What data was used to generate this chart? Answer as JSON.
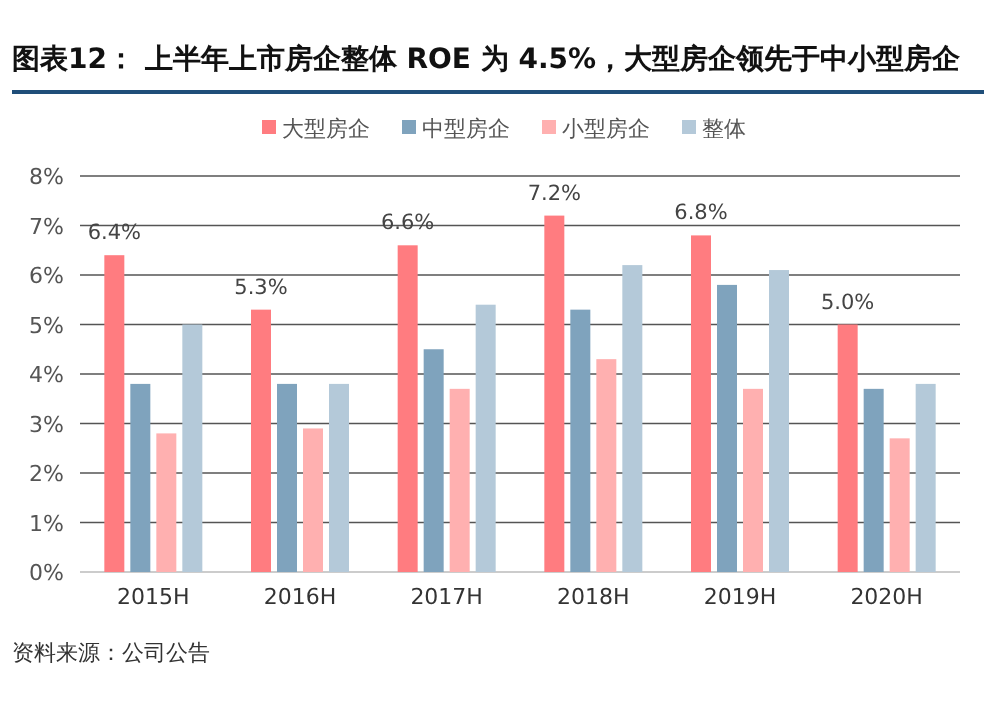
{
  "chart_data": {
    "type": "bar",
    "title": "图表12： 上半年上市房企整体 ROE 为 4.5%，大型房企领先于中小型房企",
    "categories": [
      "2015H",
      "2016H",
      "2017H",
      "2018H",
      "2019H",
      "2020H"
    ],
    "series": [
      {
        "name": "大型房企",
        "color": "#ff7c80",
        "values": [
          6.4,
          5.3,
          6.6,
          7.2,
          6.8,
          5.0
        ],
        "value_labels": [
          "6.4%",
          "5.3%",
          "6.6%",
          "7.2%",
          "6.8%",
          "5.0%"
        ]
      },
      {
        "name": "中型房企",
        "color": "#7fa3bd",
        "values": [
          3.8,
          3.8,
          4.5,
          5.3,
          5.8,
          3.7
        ]
      },
      {
        "name": "小型房企",
        "color": "#ffb0b0",
        "values": [
          2.8,
          2.9,
          3.7,
          4.3,
          3.7,
          2.7
        ]
      },
      {
        "name": "整体",
        "color": "#b4c9d9",
        "values": [
          5.0,
          3.8,
          5.4,
          6.2,
          6.1,
          3.8
        ]
      }
    ],
    "ylim": [
      0,
      8
    ],
    "yticks": [
      {
        "value": 0,
        "label": "0%"
      },
      {
        "value": 1,
        "label": "1%"
      },
      {
        "value": 2,
        "label": "2%"
      },
      {
        "value": 3,
        "label": "3%"
      },
      {
        "value": 4,
        "label": "4%"
      },
      {
        "value": 5,
        "label": "5%"
      },
      {
        "value": 6,
        "label": "6%"
      },
      {
        "value": 7,
        "label": "7%"
      },
      {
        "value": 8,
        "label": "8%"
      }
    ],
    "grid": "y",
    "legend": "top",
    "annotations": [
      "资料来源：公司公告"
    ]
  }
}
